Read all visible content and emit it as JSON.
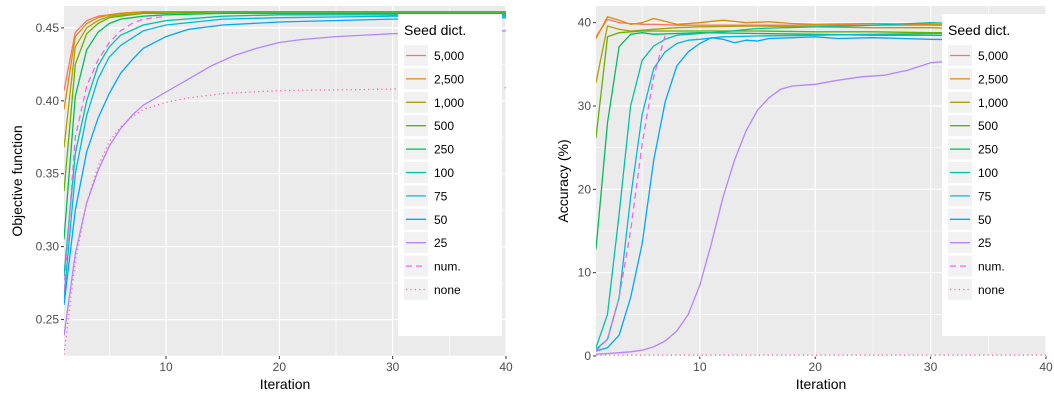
{
  "chart_data": [
    {
      "type": "line",
      "xlabel": "Iteration",
      "ylabel": "Objective function",
      "xlim": [
        1,
        40
      ],
      "ylim": [
        0.225,
        0.465
      ],
      "xticks": [
        10,
        20,
        30,
        40
      ],
      "yticks": [
        0.25,
        0.3,
        0.35,
        0.4,
        0.45
      ],
      "ytick_labels": [
        "0.25",
        "0.30",
        "0.35",
        "0.40",
        "0.45"
      ],
      "grid": true,
      "legend": {
        "title": "Seed dict.",
        "placement": "top-right",
        "entries": [
          "5,000",
          "2,500",
          "1,000",
          "500",
          "250",
          "100",
          "75",
          "50",
          "25",
          "num.",
          "none"
        ]
      },
      "series": [
        {
          "name": "5,000",
          "color": "#F8766D",
          "dash": "solid",
          "x": [
            1,
            2,
            3,
            4,
            5,
            6,
            8,
            10,
            15,
            20,
            30,
            40
          ],
          "y": [
            0.407,
            0.447,
            0.455,
            0.458,
            0.459,
            0.46,
            0.461,
            0.461,
            0.461,
            0.461,
            0.461,
            0.461
          ]
        },
        {
          "name": "2,500",
          "color": "#DB8E00",
          "dash": "solid",
          "x": [
            1,
            2,
            3,
            4,
            5,
            6,
            8,
            10,
            15,
            20,
            30,
            40
          ],
          "y": [
            0.394,
            0.444,
            0.453,
            0.457,
            0.459,
            0.46,
            0.461,
            0.461,
            0.461,
            0.461,
            0.461,
            0.461
          ]
        },
        {
          "name": "1,000",
          "color": "#AEA200",
          "dash": "solid",
          "x": [
            1,
            2,
            3,
            4,
            5,
            6,
            8,
            10,
            15,
            20,
            30,
            40
          ],
          "y": [
            0.368,
            0.437,
            0.45,
            0.455,
            0.458,
            0.459,
            0.46,
            0.461,
            0.461,
            0.461,
            0.461,
            0.461
          ]
        },
        {
          "name": "500",
          "color": "#64B200",
          "dash": "solid",
          "x": [
            1,
            2,
            3,
            4,
            5,
            6,
            8,
            10,
            15,
            20,
            30,
            40
          ],
          "y": [
            0.338,
            0.425,
            0.446,
            0.453,
            0.457,
            0.458,
            0.46,
            0.46,
            0.461,
            0.461,
            0.461,
            0.461
          ]
        },
        {
          "name": "250",
          "color": "#00BD5C",
          "dash": "solid",
          "x": [
            1,
            2,
            3,
            4,
            5,
            6,
            8,
            10,
            15,
            20,
            30,
            40
          ],
          "y": [
            0.305,
            0.403,
            0.435,
            0.447,
            0.453,
            0.456,
            0.458,
            0.459,
            0.46,
            0.46,
            0.46,
            0.46
          ]
        },
        {
          "name": "100",
          "color": "#00C1A7",
          "dash": "solid",
          "x": [
            1,
            2,
            3,
            4,
            5,
            6,
            8,
            10,
            15,
            20,
            30,
            40
          ],
          "y": [
            0.28,
            0.364,
            0.4,
            0.424,
            0.437,
            0.445,
            0.452,
            0.455,
            0.458,
            0.459,
            0.459,
            0.459
          ]
        },
        {
          "name": "75",
          "color": "#00BADE",
          "dash": "solid",
          "x": [
            1,
            2,
            3,
            4,
            5,
            6,
            8,
            10,
            15,
            20,
            30,
            40
          ],
          "y": [
            0.265,
            0.35,
            0.39,
            0.415,
            0.43,
            0.438,
            0.448,
            0.452,
            0.456,
            0.457,
            0.458,
            0.458
          ]
        },
        {
          "name": "50",
          "color": "#00A6FF",
          "dash": "solid",
          "x": [
            1,
            2,
            3,
            4,
            5,
            6,
            7,
            8,
            10,
            12,
            15,
            20,
            30,
            40
          ],
          "y": [
            0.26,
            0.325,
            0.365,
            0.388,
            0.405,
            0.419,
            0.428,
            0.436,
            0.444,
            0.449,
            0.452,
            0.454,
            0.456,
            0.457
          ]
        },
        {
          "name": "25",
          "color": "#B385FF",
          "dash": "solid",
          "x": [
            1,
            2,
            3,
            4,
            5,
            6,
            7,
            8,
            10,
            12,
            14,
            16,
            18,
            20,
            22,
            25,
            30,
            35,
            40
          ],
          "y": [
            0.239,
            0.295,
            0.33,
            0.352,
            0.369,
            0.381,
            0.39,
            0.397,
            0.406,
            0.415,
            0.424,
            0.431,
            0.436,
            0.44,
            0.442,
            0.444,
            0.446,
            0.447,
            0.448
          ]
        },
        {
          "name": "num.",
          "color": "#EF67EB",
          "dash": "dashed",
          "x": [
            1,
            2,
            3,
            4,
            5,
            6,
            7,
            8,
            10
          ],
          "y": [
            0.27,
            0.375,
            0.41,
            0.428,
            0.44,
            0.448,
            0.453,
            0.456,
            0.458
          ]
        },
        {
          "name": "none",
          "color": "#FF63B6",
          "dash": "dotted",
          "x": [
            1,
            2,
            3,
            4,
            5,
            6,
            7,
            8,
            10,
            12,
            15,
            20,
            30,
            40
          ],
          "y": [
            0.226,
            0.29,
            0.33,
            0.355,
            0.372,
            0.382,
            0.389,
            0.394,
            0.399,
            0.402,
            0.405,
            0.407,
            0.408,
            0.409
          ]
        }
      ]
    },
    {
      "type": "line",
      "xlabel": "Iteration",
      "ylabel": "Accuracy (%)",
      "xlim": [
        1,
        40
      ],
      "ylim": [
        0,
        42
      ],
      "xticks": [
        10,
        20,
        30,
        40
      ],
      "yticks": [
        0,
        10,
        20,
        30,
        40
      ],
      "ytick_labels": [
        "0",
        "10",
        "20",
        "30",
        "40"
      ],
      "grid": true,
      "legend": {
        "title": "Seed dict.",
        "placement": "top-right",
        "entries": [
          "5,000",
          "2,500",
          "1,000",
          "500",
          "250",
          "100",
          "75",
          "50",
          "25",
          "num.",
          "none"
        ]
      },
      "series": [
        {
          "name": "5,000",
          "color": "#F8766D",
          "dash": "solid",
          "x": [
            1,
            2,
            3,
            4,
            5,
            6,
            8,
            10,
            15,
            20,
            30,
            40
          ],
          "y": [
            38.3,
            40.4,
            40.0,
            39.9,
            39.8,
            39.8,
            39.7,
            39.7,
            39.7,
            39.7,
            39.7,
            39.7
          ]
        },
        {
          "name": "2,500",
          "color": "#DB8E00",
          "dash": "solid",
          "x": [
            1,
            2,
            3,
            4,
            5,
            6,
            8,
            10,
            12,
            14,
            16,
            18,
            20,
            25,
            30,
            35,
            40
          ],
          "y": [
            38.1,
            40.7,
            40.3,
            39.8,
            40.0,
            40.5,
            39.8,
            40.0,
            40.3,
            40.0,
            40.1,
            39.9,
            39.8,
            39.9,
            39.8,
            39.6,
            39.7
          ]
        },
        {
          "name": "1,000",
          "color": "#AEA200",
          "dash": "solid",
          "x": [
            1,
            2,
            3,
            4,
            5,
            6,
            8,
            10,
            15,
            20,
            25,
            30,
            35,
            40
          ],
          "y": [
            32.8,
            39.6,
            39.2,
            39.0,
            39.1,
            39.2,
            39.4,
            39.5,
            39.6,
            39.5,
            39.4,
            39.4,
            39.2,
            39.2
          ]
        },
        {
          "name": "500",
          "color": "#64B200",
          "dash": "solid",
          "x": [
            1,
            2,
            3,
            4,
            5,
            6,
            8,
            10,
            15,
            20,
            25,
            30,
            35,
            40
          ],
          "y": [
            26.2,
            38.3,
            38.8,
            38.9,
            39.0,
            39.0,
            39.0,
            39.0,
            39.0,
            38.9,
            38.9,
            38.8,
            38.8,
            38.8
          ]
        },
        {
          "name": "250",
          "color": "#00BD5C",
          "dash": "solid",
          "x": [
            1,
            2,
            3,
            4,
            5,
            6,
            8,
            10,
            15,
            20,
            25,
            30,
            35,
            40
          ],
          "y": [
            12.8,
            28.0,
            37.1,
            38.6,
            38.8,
            38.6,
            38.7,
            38.8,
            38.7,
            38.6,
            38.5,
            38.5,
            38.4,
            38.4
          ]
        },
        {
          "name": "100",
          "color": "#00C1A7",
          "dash": "solid",
          "x": [
            1,
            2,
            3,
            4,
            5,
            6,
            7,
            8,
            10,
            12,
            15,
            20,
            25,
            30,
            35,
            40
          ],
          "y": [
            1.0,
            5.0,
            17.0,
            30.0,
            35.5,
            37.2,
            38.0,
            38.5,
            38.7,
            38.9,
            39.3,
            39.5,
            39.7,
            40.0,
            39.8,
            39.5
          ]
        },
        {
          "name": "75",
          "color": "#00BADE",
          "dash": "solid",
          "x": [
            1,
            2,
            3,
            4,
            5,
            6,
            7,
            8,
            9,
            10,
            12,
            15,
            20,
            25,
            30,
            35,
            40
          ],
          "y": [
            0.8,
            2.0,
            7.0,
            19.0,
            29.0,
            34.5,
            36.5,
            37.5,
            37.9,
            38.0,
            38.3,
            38.4,
            38.5,
            38.6,
            38.7,
            38.7,
            38.8
          ]
        },
        {
          "name": "50",
          "color": "#00A6FF",
          "dash": "solid",
          "x": [
            1,
            2,
            3,
            4,
            5,
            6,
            7,
            8,
            9,
            10,
            11,
            12,
            13,
            14,
            15,
            16,
            18,
            20,
            22,
            25,
            30,
            35,
            40
          ],
          "y": [
            0.6,
            1.0,
            2.5,
            7.0,
            13.5,
            23.5,
            30.5,
            34.8,
            36.5,
            37.5,
            38.2,
            38.0,
            37.6,
            37.9,
            37.8,
            38.1,
            38.2,
            38.3,
            38.1,
            38.2,
            38.0,
            37.9,
            37.8
          ]
        },
        {
          "name": "25",
          "color": "#B385FF",
          "dash": "solid",
          "x": [
            1,
            2,
            3,
            4,
            5,
            6,
            7,
            8,
            9,
            10,
            11,
            12,
            13,
            14,
            15,
            16,
            17,
            18,
            19,
            20,
            22,
            24,
            26,
            28,
            30,
            32,
            34,
            36,
            38,
            40
          ],
          "y": [
            0.2,
            0.3,
            0.4,
            0.5,
            0.7,
            1.1,
            1.8,
            3.0,
            5.0,
            8.5,
            13.5,
            19.0,
            23.5,
            27.0,
            29.5,
            31.0,
            32.0,
            32.4,
            32.5,
            32.6,
            33.1,
            33.5,
            33.7,
            34.3,
            35.2,
            35.4,
            35.5,
            35.4,
            35.4,
            35.6
          ]
        },
        {
          "name": "num.",
          "color": "#EF67EB",
          "dash": "dashed",
          "x": [
            1,
            2,
            3,
            4,
            5,
            6,
            7
          ],
          "y": [
            0.6,
            2.0,
            7.0,
            15.0,
            25.5,
            33.5,
            38.5
          ]
        },
        {
          "name": "none",
          "color": "#FF63B6",
          "dash": "dotted",
          "x": [
            1,
            40
          ],
          "y": [
            0.1,
            0.1
          ]
        }
      ]
    }
  ]
}
